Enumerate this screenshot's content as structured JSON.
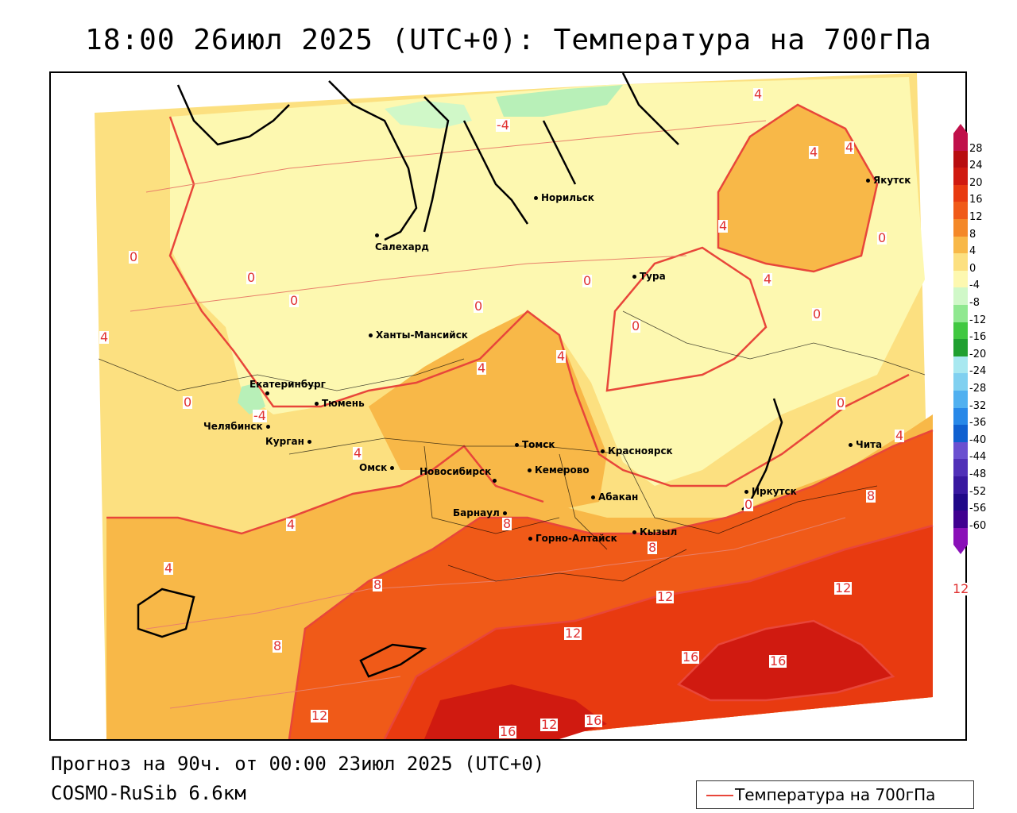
{
  "title": "18:00 26июл 2025 (UTC+0): Температура на 700гПа",
  "forecast_line": "Прогноз на 90ч. от 00:00 23июл 2025 (UTC+0)",
  "model_line": "COSMO-RuSib 6.6км",
  "legend": {
    "label": "Температура на 700гПа",
    "line_color": "#e8463a"
  },
  "colorbar": {
    "ticks": [
      "28",
      "24",
      "20",
      "16",
      "12",
      "8",
      "4",
      "0",
      "-4",
      "-8",
      "-12",
      "-16",
      "-20",
      "-24",
      "-28",
      "-32",
      "-36",
      "-40",
      "-44",
      "-48",
      "-52",
      "-56",
      "-60"
    ],
    "colors": [
      "#c0104a",
      "#b80d10",
      "#d01a10",
      "#e83a10",
      "#f05a18",
      "#f48828",
      "#f8b848",
      "#fce080",
      "#fdf8b0",
      "#d0f8c8",
      "#90e890",
      "#40c840",
      "#20a030",
      "#a8e8f0",
      "#80d0f0",
      "#50b0f0",
      "#2888e8",
      "#1060d0",
      "#6a50d0",
      "#5030b8",
      "#3818a0",
      "#200888",
      "#400090",
      "#8a10b8"
    ]
  },
  "cities": [
    {
      "name": "Норильск"
    },
    {
      "name": "Салехард"
    },
    {
      "name": "Тура"
    },
    {
      "name": "Якутск"
    },
    {
      "name": "Ханты-Мансийск"
    },
    {
      "name": "Екатеринбург"
    },
    {
      "name": "Тюмень"
    },
    {
      "name": "Челябинск"
    },
    {
      "name": "Курган"
    },
    {
      "name": "Омск"
    },
    {
      "name": "Новосибирск"
    },
    {
      "name": "Томск"
    },
    {
      "name": "Кемерово"
    },
    {
      "name": "Красноярск"
    },
    {
      "name": "Абакан"
    },
    {
      "name": "Барнаул"
    },
    {
      "name": "Горно-Алтайск"
    },
    {
      "name": "Кызыл"
    },
    {
      "name": "Иркутск"
    },
    {
      "name": "Чита"
    }
  ],
  "contour_labels": [
    "-4",
    "4",
    "4",
    "4",
    "4",
    "4",
    "0",
    "0",
    "0",
    "0",
    "0",
    "0",
    "0",
    "4",
    "4",
    "0",
    "0",
    "4",
    "0",
    "-4",
    "4",
    "4",
    "0",
    "8",
    "4",
    "8",
    "4",
    "8",
    "8",
    "12",
    "12",
    "12",
    "12",
    "16",
    "16",
    "16",
    "12",
    "16",
    "12",
    "8"
  ]
}
